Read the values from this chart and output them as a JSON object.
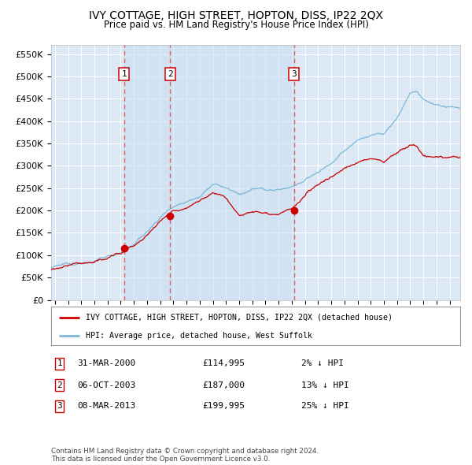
{
  "title": "IVY COTTAGE, HIGH STREET, HOPTON, DISS, IP22 2QX",
  "subtitle": "Price paid vs. HM Land Registry's House Price Index (HPI)",
  "background_color": "#ffffff",
  "plot_bg_color": "#dce9f5",
  "grid_color": "#ffffff",
  "ylim": [
    0,
    570000
  ],
  "yticks": [
    0,
    50000,
    100000,
    150000,
    200000,
    250000,
    300000,
    350000,
    400000,
    450000,
    500000,
    550000
  ],
  "ytick_labels": [
    "£0",
    "£50K",
    "£100K",
    "£150K",
    "£200K",
    "£250K",
    "£300K",
    "£350K",
    "£400K",
    "£450K",
    "£500K",
    "£550K"
  ],
  "xlim_start": 1994.7,
  "xlim_end": 2025.8,
  "sale_dates": [
    2000.247,
    2003.755,
    2013.18
  ],
  "sale_prices": [
    114995,
    187000,
    199995
  ],
  "sale_labels": [
    "1",
    "2",
    "3"
  ],
  "hpi_color": "#7ab8d9",
  "price_color": "#cc0000",
  "sale_marker_color": "#cc0000",
  "vline_color": "#e06060",
  "shade_color": "#c8ddf0",
  "legend_label_red": "IVY COTTAGE, HIGH STREET, HOPTON, DISS, IP22 2QX (detached house)",
  "legend_label_blue": "HPI: Average price, detached house, West Suffolk",
  "table_rows": [
    {
      "num": "1",
      "date": "31-MAR-2000",
      "price": "£114,995",
      "pct": "2% ↓ HPI"
    },
    {
      "num": "2",
      "date": "06-OCT-2003",
      "price": "£187,000",
      "pct": "13% ↓ HPI"
    },
    {
      "num": "3",
      "date": "08-MAR-2013",
      "price": "£199,995",
      "pct": "25% ↓ HPI"
    }
  ],
  "footer": "Contains HM Land Registry data © Crown copyright and database right 2024.\nThis data is licensed under the Open Government Licence v3.0."
}
